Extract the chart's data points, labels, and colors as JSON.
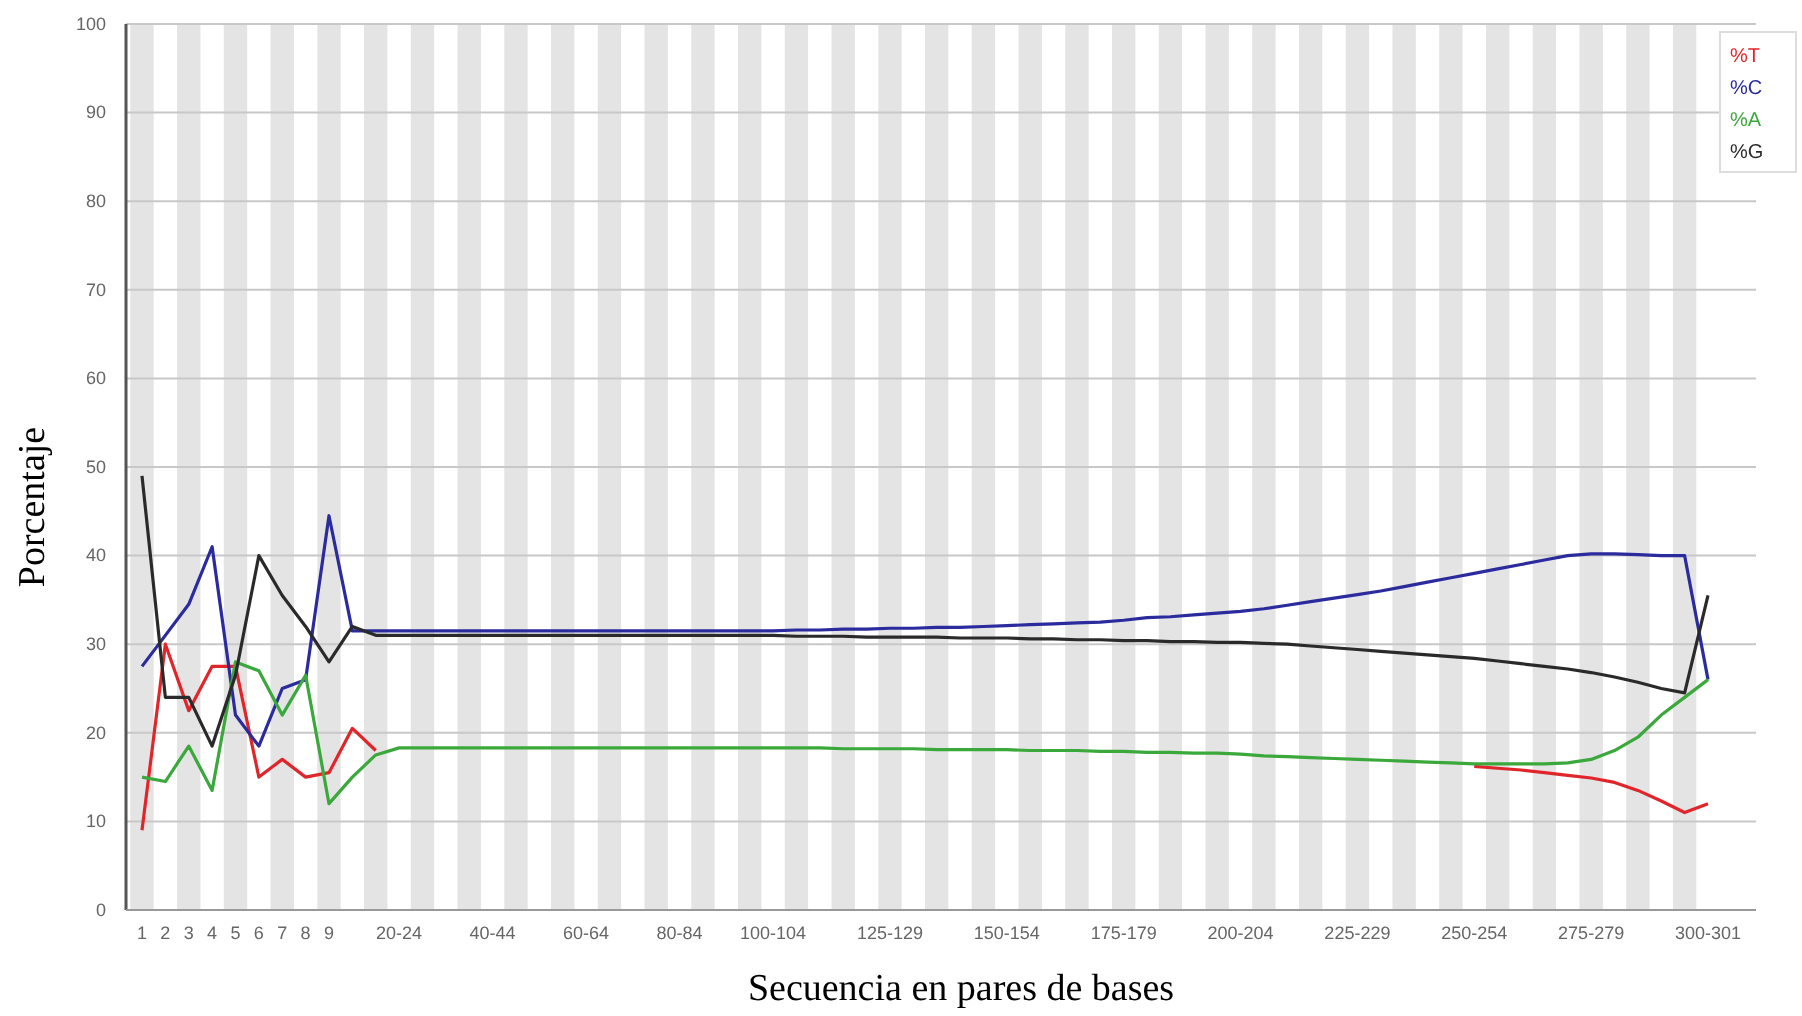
{
  "chart_data": {
    "type": "line",
    "xlabel": "Secuencia en pares de bases",
    "ylabel": "Porcentaje",
    "categories": [
      "1",
      "2",
      "3",
      "4",
      "5",
      "6",
      "7",
      "8",
      "9",
      null,
      null,
      "20-24",
      null,
      null,
      null,
      "40-44",
      null,
      null,
      null,
      "60-64",
      null,
      null,
      null,
      "80-84",
      null,
      null,
      null,
      "100-104",
      null,
      null,
      null,
      null,
      "125-129",
      null,
      null,
      null,
      null,
      "150-154",
      null,
      null,
      null,
      null,
      "175-179",
      null,
      null,
      null,
      null,
      "200-204",
      null,
      null,
      null,
      null,
      "225-229",
      null,
      null,
      null,
      null,
      "250-254",
      null,
      null,
      null,
      null,
      "275-279",
      null,
      null,
      null,
      null,
      "300-301"
    ],
    "ylim": [
      0,
      100
    ],
    "yticks": [
      0,
      10,
      20,
      30,
      40,
      50,
      60,
      70,
      80,
      90,
      100
    ],
    "grid": "y",
    "legend": "top right",
    "marker": "none",
    "line_style": "solid",
    "series": [
      {
        "name": "%T",
        "color": "#e0262b",
        "values": [
          9,
          30,
          22.5,
          27.5,
          27.5,
          15,
          17,
          15,
          15.5,
          20.5,
          18,
          null,
          null,
          null,
          null,
          null,
          null,
          null,
          null,
          null,
          null,
          null,
          null,
          null,
          null,
          null,
          null,
          null,
          null,
          null,
          null,
          null,
          null,
          null,
          null,
          null,
          null,
          null,
          null,
          null,
          null,
          null,
          null,
          null,
          null,
          null,
          null,
          null,
          null,
          null,
          null,
          null,
          null,
          null,
          null,
          null,
          null,
          16.2,
          16,
          15.8,
          15.5,
          15.2,
          14.9,
          14.4,
          13.5,
          12.3,
          11,
          12
        ]
      },
      {
        "name": "%C",
        "color": "#2b2b9e",
        "values": [
          27.5,
          31,
          34.5,
          41,
          22,
          18.5,
          25,
          26,
          44.5,
          31.5,
          31.5,
          31.5,
          31.5,
          31.5,
          31.5,
          31.5,
          31.5,
          31.5,
          31.5,
          31.5,
          31.5,
          31.5,
          31.5,
          31.5,
          31.5,
          31.5,
          31.5,
          31.5,
          31.6,
          31.6,
          31.7,
          31.7,
          31.8,
          31.8,
          31.9,
          31.9,
          32,
          32.1,
          32.2,
          32.3,
          32.4,
          32.5,
          32.7,
          33,
          33.1,
          33.3,
          33.5,
          33.7,
          34,
          34.4,
          34.8,
          35.2,
          35.6,
          36,
          36.5,
          37,
          37.5,
          38,
          38.5,
          39,
          39.5,
          40,
          40.2,
          40.2,
          40.1,
          40,
          40,
          26
        ]
      },
      {
        "name": "%A",
        "color": "#3aa83a",
        "values": [
          15,
          14.5,
          18.5,
          13.5,
          28,
          27,
          22,
          26.5,
          12,
          15,
          17.5,
          18.3,
          18.3,
          18.3,
          18.3,
          18.3,
          18.3,
          18.3,
          18.3,
          18.3,
          18.3,
          18.3,
          18.3,
          18.3,
          18.3,
          18.3,
          18.3,
          18.3,
          18.3,
          18.3,
          18.2,
          18.2,
          18.2,
          18.2,
          18.1,
          18.1,
          18.1,
          18.1,
          18,
          18,
          18,
          17.9,
          17.9,
          17.8,
          17.8,
          17.7,
          17.7,
          17.6,
          17.4,
          17.3,
          17.2,
          17.1,
          17,
          16.9,
          16.8,
          16.7,
          16.6,
          16.5,
          16.5,
          16.5,
          16.5,
          16.6,
          17,
          18,
          19.5,
          22,
          24,
          26
        ]
      },
      {
        "name": "%G",
        "color": "#2a2a2a",
        "values": [
          49,
          24,
          24,
          18.5,
          26.5,
          40,
          35.5,
          32,
          28,
          32,
          31,
          31,
          31,
          31,
          31,
          31,
          31,
          31,
          31,
          31,
          31,
          31,
          31,
          31,
          31,
          31,
          31,
          31,
          30.9,
          30.9,
          30.9,
          30.8,
          30.8,
          30.8,
          30.8,
          30.7,
          30.7,
          30.7,
          30.6,
          30.6,
          30.5,
          30.5,
          30.4,
          30.4,
          30.3,
          30.3,
          30.2,
          30.2,
          30.1,
          30,
          29.8,
          29.6,
          29.4,
          29.2,
          29,
          28.8,
          28.6,
          28.4,
          28.1,
          27.8,
          27.5,
          27.2,
          26.8,
          26.3,
          25.7,
          25,
          24.5,
          35.5
        ]
      }
    ]
  }
}
